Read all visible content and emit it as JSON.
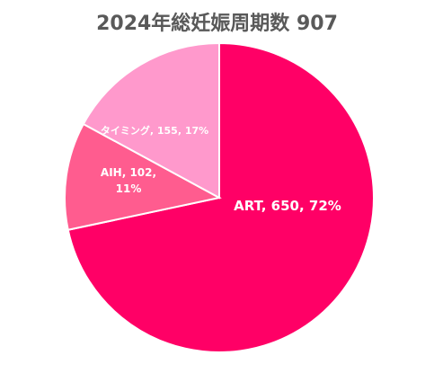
{
  "chart_data": {
    "type": "pie",
    "title": "2024年総妊娠周期数 907",
    "slices": [
      {
        "label": "ART",
        "value": 650,
        "percent": "72%",
        "color": "#FF0066",
        "label_text": [
          "ART, 650, 72%"
        ]
      },
      {
        "label": "AIH",
        "value": 102,
        "percent": "11%",
        "color": "#FF5C8F",
        "label_text": [
          "AIH, 102,",
          "11%"
        ]
      },
      {
        "label": "タイミング",
        "value": 155,
        "percent": "17%",
        "color": "#FF99CC",
        "label_text": [
          "タイミング, 155, 17%"
        ]
      }
    ],
    "start_angle": "12 o'clock",
    "direction": "clockwise",
    "legend": "none"
  }
}
